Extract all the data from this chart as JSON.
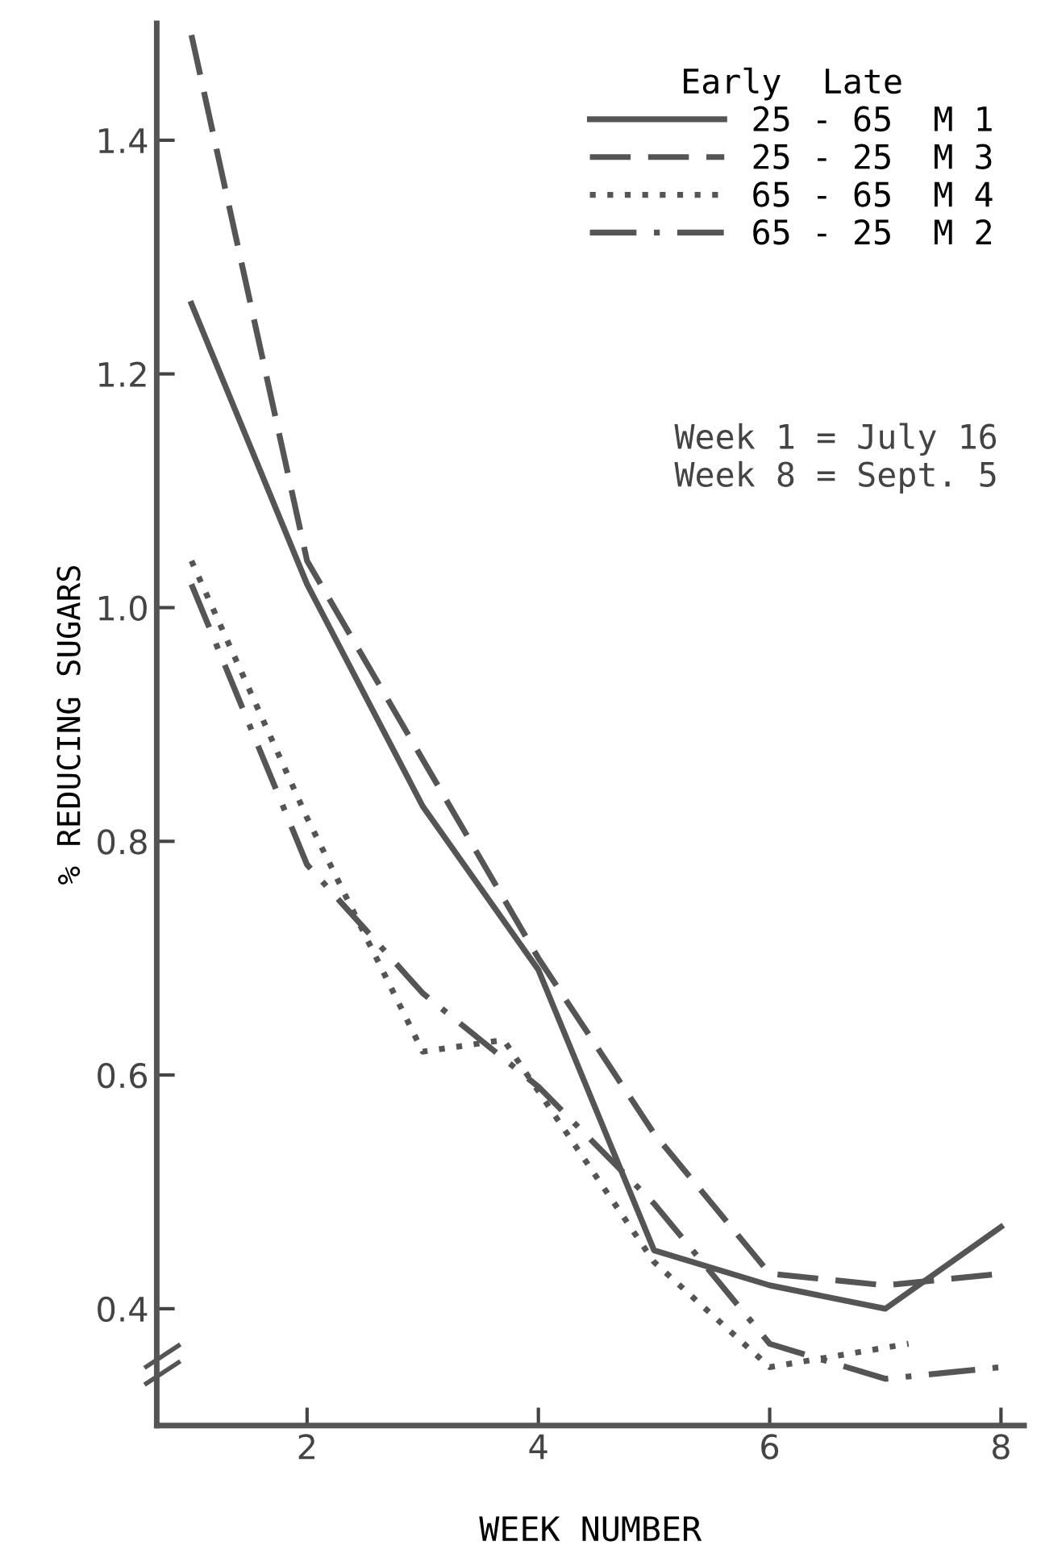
{
  "chart_data": {
    "type": "line",
    "xlabel": "WEEK NUMBER",
    "ylabel": "% REDUCING SUGARS",
    "legend_title": "Early  Late",
    "legend": "top right",
    "grid": false,
    "marker": "none",
    "xlim": [
      0.7,
      8.2
    ],
    "ylim": [
      0.3,
      1.5
    ],
    "xticks": [
      2,
      4,
      6,
      8
    ],
    "yticks": [
      0.4,
      0.6,
      0.8,
      {
        "value": 1.0,
        "label": "1.0"
      },
      1.2,
      1.4
    ],
    "series": [
      {
        "name": "25 - 65  M 1",
        "color": "#555555",
        "line_style": "solid",
        "x": [
          1,
          2,
          3,
          4,
          5,
          6,
          7,
          8
        ],
        "values": [
          1.26,
          1.02,
          0.83,
          0.69,
          0.45,
          0.42,
          0.4,
          0.47
        ]
      },
      {
        "name": "25 - 25  M 3",
        "color": "#555555",
        "line_style": "dashed",
        "x": [
          1,
          2,
          3,
          4,
          5,
          6,
          7,
          8
        ],
        "values": [
          1.49,
          1.04,
          0.87,
          0.7,
          0.55,
          0.43,
          0.42,
          0.43
        ]
      },
      {
        "name": "65 - 65  M 4",
        "color": "#555555",
        "line_style": "dotted",
        "x": [
          1,
          2,
          3,
          3.7,
          5,
          6,
          7.2
        ],
        "values": [
          1.04,
          0.82,
          0.62,
          0.63,
          0.44,
          0.35,
          0.37
        ]
      },
      {
        "name": "65 - 25  M 2",
        "color": "#555555",
        "line_style": "dashdot",
        "x": [
          1,
          2,
          3,
          4,
          5,
          6,
          7,
          8
        ],
        "values": [
          1.02,
          0.78,
          0.67,
          0.59,
          0.49,
          0.37,
          0.34,
          0.35
        ]
      }
    ],
    "annotations": [
      "Week 1 = July 16\nWeek 8 = Sept. 5"
    ]
  }
}
